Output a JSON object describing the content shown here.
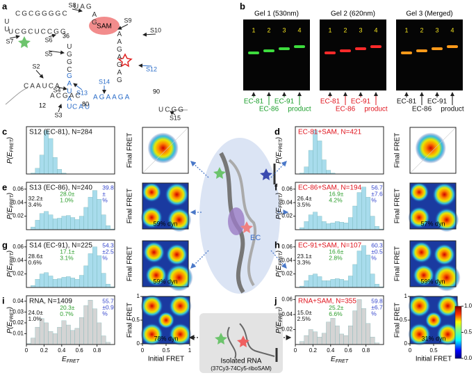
{
  "panel_a": {
    "label": "a",
    "sam": "SAM",
    "segments": [
      "CGCGGGGC",
      "UCGCUCCGG",
      "UU",
      "UAG",
      "AG",
      "UGGC",
      "GAUAU",
      "AAGAGAG",
      "CAAUCA",
      "ACGAC",
      "CAU",
      "AGAAGA",
      "UCGG"
    ],
    "sites": [
      "S2",
      "S3",
      "S4",
      "S5",
      "S6",
      "S7",
      "S8",
      "S9",
      "S10",
      "S12",
      "S13",
      "S14",
      "S15"
    ],
    "numbers": [
      "36",
      "12",
      "80",
      "90"
    ]
  },
  "panel_b": {
    "label": "b",
    "gels": [
      {
        "title": "Gel 1 (530nm)",
        "lanes": [
          "1",
          "2",
          "3",
          "4"
        ],
        "products": [
          "EC-81",
          "EC-86",
          "EC-91",
          "product"
        ],
        "product_color": "#1a9e2a",
        "band_color": "#3ddc3d"
      },
      {
        "title": "Gel 2 (620nm)",
        "lanes": [
          "1",
          "2",
          "3",
          "4"
        ],
        "products": [
          "EC-81",
          "EC-86",
          "EC-91",
          "product"
        ],
        "product_color": "#e0141e",
        "band_color": "#ff2a2a"
      },
      {
        "title": "Gel 3 (Merged)",
        "lanes": [
          "1",
          "2",
          "3",
          "4"
        ],
        "products": [
          "EC-81",
          "EC-86",
          "EC-91",
          "product"
        ],
        "product_color": "#111111",
        "band_color": "#ff9a1a"
      }
    ]
  },
  "center": {
    "ec": "EC",
    "rna_title": "Isolated RNA",
    "rna_sub": "(37Cy3-74Cy5-riboSAM)"
  },
  "colorbar": {
    "lim": [
      0,
      1
    ],
    "ticks": [
      {
        "value": 1,
        "label": "1.0"
      },
      {
        "value": 0.5,
        "label": "0.5"
      },
      {
        "value": 0,
        "label": "0.0"
      }
    ]
  },
  "chart_data": [
    {
      "type": "histogram",
      "panel": "c",
      "title": "S12 (EC-81), N=284",
      "title_color": "#111111",
      "bar_color": "#a8dcec",
      "bins": [
        0,
        0.05,
        0.1,
        0.15,
        0.2,
        0.25,
        0.3,
        0.35,
        0.4,
        0.45,
        0.5,
        0.55,
        0.6,
        0.65,
        0.7,
        0.75,
        0.8,
        0.85,
        0.9,
        0.95,
        1
      ],
      "values": [
        0,
        0.2,
        1.2,
        4,
        9.2,
        7.5,
        3.5,
        1,
        0.2,
        0,
        0,
        0,
        0,
        0,
        0,
        0,
        0,
        0,
        0,
        0
      ],
      "xlim": [
        0,
        1
      ],
      "ylim": [
        0,
        10
      ],
      "y_label": {
        "main": "P(E",
        "sub": "FRET",
        "end": ")"
      },
      "annotations": [],
      "heatmap": {
        "y_label": "Final FRET"
      }
    },
    {
      "type": "histogram",
      "panel": "d",
      "title": "EC-81+SAM, N=421",
      "title_color": "#e0141e",
      "bar_color": "#a8dcec",
      "bins": [
        0,
        0.05,
        0.1,
        0.15,
        0.2,
        0.25,
        0.3,
        0.35,
        0.4,
        0.45,
        0.5,
        0.55,
        0.6,
        0.65,
        0.7,
        0.75,
        0.8,
        0.85,
        0.9,
        0.95,
        1
      ],
      "values": [
        0,
        0.2,
        1.5,
        5,
        9.3,
        7,
        3,
        0.8,
        0.2,
        0,
        0,
        0,
        0,
        0,
        0,
        0,
        0,
        0,
        0,
        0
      ],
      "xlim": [
        0,
        1
      ],
      "ylim": [
        0,
        10
      ],
      "y_label": {
        "main": "P(E",
        "sub": "FRET",
        "end": ")"
      },
      "annotations": [],
      "heatmap": {
        "y_label": "Final FRET"
      }
    },
    {
      "type": "histogram",
      "panel": "e",
      "title": "S13 (EC-86), N=240",
      "title_color": "#111111",
      "bar_color": "#a8dcec",
      "bins": [
        0,
        0.05,
        0.1,
        0.15,
        0.2,
        0.25,
        0.3,
        0.35,
        0.4,
        0.45,
        0.5,
        0.55,
        0.6,
        0.65,
        0.7,
        0.75,
        0.8,
        0.85,
        0.9,
        0.95,
        1
      ],
      "values": [
        0,
        0.004,
        0.014,
        0.024,
        0.027,
        0.022,
        0.016,
        0.017,
        0.02,
        0.021,
        0.018,
        0.015,
        0.02,
        0.033,
        0.048,
        0.058,
        0.045,
        0.022,
        0.006,
        0.001
      ],
      "xlim": [
        0,
        1
      ],
      "ylim": [
        0,
        0.07
      ],
      "yticks": [
        0.02,
        0.04,
        0.06
      ],
      "y_label": {
        "main": "P(E",
        "sub": "FRET",
        "end": ")"
      },
      "annotations": [
        {
          "lines": [
            "32.2±",
            "3.4%"
          ],
          "color": "#111111"
        },
        {
          "lines": [
            "28.0±",
            "1.0%"
          ],
          "color": "#2a9d2a"
        },
        {
          "lines": [
            "39.8",
            "±",
            "%"
          ],
          "color": "#3344cc"
        }
      ],
      "heatmap": {
        "y_label": "Final FRET",
        "dyn": "59% dyn"
      }
    },
    {
      "type": "histogram",
      "panel": "f",
      "title": "EC-86+SAM, N=194",
      "title_color": "#e0141e",
      "bar_color": "#a8dcec",
      "bins": [
        0,
        0.05,
        0.1,
        0.15,
        0.2,
        0.25,
        0.3,
        0.35,
        0.4,
        0.45,
        0.5,
        0.55,
        0.6,
        0.65,
        0.7,
        0.75,
        0.8,
        0.85,
        0.9,
        0.95,
        1
      ],
      "values": [
        0,
        0.003,
        0.012,
        0.022,
        0.026,
        0.02,
        0.012,
        0.009,
        0.01,
        0.012,
        0.011,
        0.01,
        0.018,
        0.035,
        0.055,
        0.063,
        0.048,
        0.02,
        0.005,
        0.001
      ],
      "xlim": [
        0,
        1
      ],
      "ylim": [
        0,
        0.07
      ],
      "yticks": [
        0.02,
        0.04,
        0.06
      ],
      "y_label": {
        "main": "P(E",
        "sub": "FRET",
        "end": ")"
      },
      "annotations": [
        {
          "lines": [
            "26.4±",
            "3.5%"
          ],
          "color": "#111111"
        },
        {
          "lines": [
            "16.9±",
            "4.2%"
          ],
          "color": "#2a9d2a"
        },
        {
          "lines": [
            "56.7",
            "±7.6",
            "%"
          ],
          "color": "#3344cc"
        }
      ],
      "heatmap": {
        "y_label": "Final FRET",
        "dyn": "57% dyn"
      }
    },
    {
      "type": "histogram",
      "panel": "g",
      "title": "S14 (EC-91), N=225",
      "title_color": "#111111",
      "bar_color": "#a8dcec",
      "bins": [
        0,
        0.05,
        0.1,
        0.15,
        0.2,
        0.25,
        0.3,
        0.35,
        0.4,
        0.45,
        0.5,
        0.55,
        0.6,
        0.65,
        0.7,
        0.75,
        0.8,
        0.85,
        0.9,
        0.95,
        1
      ],
      "values": [
        0,
        0.003,
        0.012,
        0.02,
        0.022,
        0.017,
        0.012,
        0.013,
        0.015,
        0.016,
        0.014,
        0.012,
        0.018,
        0.032,
        0.05,
        0.06,
        0.047,
        0.021,
        0.005,
        0.001
      ],
      "xlim": [
        0,
        1
      ],
      "ylim": [
        0,
        0.07
      ],
      "yticks": [
        0.02,
        0.04,
        0.06
      ],
      "y_label": {
        "main": "P(E",
        "sub": "FRET",
        "end": ")"
      },
      "annotations": [
        {
          "lines": [
            "28.6±",
            "0.6%"
          ],
          "color": "#111111"
        },
        {
          "lines": [
            "17.1±",
            "3.1%"
          ],
          "color": "#2a9d2a"
        },
        {
          "lines": [
            "54.3",
            "±2.5",
            "%"
          ],
          "color": "#3344cc"
        }
      ],
      "heatmap": {
        "y_label": "Final FRET",
        "dyn": "59% dyn"
      }
    },
    {
      "type": "histogram",
      "panel": "h",
      "title": "EC-91+SAM, N=107",
      "title_color": "#e0141e",
      "bar_color": "#a8dcec",
      "bins": [
        0,
        0.05,
        0.1,
        0.15,
        0.2,
        0.25,
        0.3,
        0.35,
        0.4,
        0.45,
        0.5,
        0.55,
        0.6,
        0.65,
        0.7,
        0.75,
        0.8,
        0.85,
        0.9,
        0.95,
        1
      ],
      "values": [
        0,
        0.002,
        0.01,
        0.018,
        0.02,
        0.016,
        0.01,
        0.01,
        0.012,
        0.013,
        0.012,
        0.01,
        0.017,
        0.034,
        0.054,
        0.062,
        0.048,
        0.02,
        0.005,
        0.001
      ],
      "xlim": [
        0,
        1
      ],
      "ylim": [
        0,
        0.07
      ],
      "yticks": [
        0.02,
        0.04,
        0.06
      ],
      "y_label": {
        "main": "P(E",
        "sub": "FRET",
        "end": ")"
      },
      "annotations": [
        {
          "lines": [
            "23.1±",
            "3.3%"
          ],
          "color": "#111111"
        },
        {
          "lines": [
            "16.6±",
            "2.8%"
          ],
          "color": "#2a9d2a"
        },
        {
          "lines": [
            "60.3",
            "±0.5",
            "%"
          ],
          "color": "#3344cc"
        }
      ],
      "heatmap": {
        "y_label": "Final FRET",
        "dyn": "59% dyn"
      }
    },
    {
      "type": "histogram",
      "panel": "i",
      "title": "RNA, N=1409",
      "title_color": "#111111",
      "bar_color": "#d4d4d4",
      "bins": [
        0,
        0.05,
        0.1,
        0.15,
        0.2,
        0.25,
        0.3,
        0.35,
        0.4,
        0.45,
        0.5,
        0.55,
        0.6,
        0.65,
        0.7,
        0.75,
        0.8,
        0.85,
        0.9,
        0.95,
        1
      ],
      "values": [
        0.001,
        0.006,
        0.016,
        0.024,
        0.02,
        0.012,
        0.01,
        0.016,
        0.022,
        0.018,
        0.013,
        0.015,
        0.025,
        0.036,
        0.041,
        0.033,
        0.02,
        0.008,
        0.002,
        0
      ],
      "xlim": [
        0,
        1
      ],
      "ylim": [
        0,
        0.045
      ],
      "yticks": [
        0.01,
        0.02,
        0.03,
        0.04
      ],
      "xticks": [
        0,
        0.2,
        0.4,
        0.6,
        0.8
      ],
      "y_label": {
        "main": "P(E",
        "sub": "FRET",
        "end": ")"
      },
      "x_label": {
        "main": "E",
        "sub": "FRET"
      },
      "annotations": [
        {
          "lines": [
            "24.0±",
            "1.0%"
          ],
          "color": "#111111"
        },
        {
          "lines": [
            "20.3±",
            "0.7%"
          ],
          "color": "#2a9d2a"
        },
        {
          "lines": [
            "55.7",
            "±0.9",
            "%"
          ],
          "color": "#3344cc"
        }
      ],
      "heatmap": {
        "y_label": "Final FRET",
        "x_label": "Initial FRET",
        "dyn": "78% dyn",
        "xticks": [
          0,
          0.5,
          1
        ],
        "yticks": [
          0,
          0.5,
          1
        ]
      }
    },
    {
      "type": "histogram",
      "panel": "j",
      "title": "RNA+SAM, N=355",
      "title_color": "#e0141e",
      "bar_color": "#d4d4d4",
      "bins": [
        0,
        0.05,
        0.1,
        0.15,
        0.2,
        0.25,
        0.3,
        0.35,
        0.4,
        0.45,
        0.5,
        0.55,
        0.6,
        0.65,
        0.7,
        0.75,
        0.8,
        0.85,
        0.9,
        0.95,
        1
      ],
      "values": [
        0,
        0.004,
        0.012,
        0.02,
        0.017,
        0.01,
        0.015,
        0.03,
        0.035,
        0.025,
        0.014,
        0.012,
        0.025,
        0.045,
        0.06,
        0.048,
        0.028,
        0.01,
        0.002,
        0
      ],
      "xlim": [
        0,
        1
      ],
      "ylim": [
        0,
        0.065
      ],
      "yticks": [
        0.02,
        0.04,
        0.06
      ],
      "xticks": [
        0,
        0.2,
        0.4,
        0.6,
        0.8
      ],
      "y_label": {
        "main": "P(E",
        "sub": "FRET",
        "end": ")"
      },
      "x_label": {
        "main": "E",
        "sub": "FRET"
      },
      "annotations": [
        {
          "lines": [
            "15.0±",
            "2.5%"
          ],
          "color": "#111111"
        },
        {
          "lines": [
            "25.2±",
            "6.6%"
          ],
          "color": "#2a9d2a"
        },
        {
          "lines": [
            "59.8",
            "±6.7",
            "%"
          ],
          "color": "#3344cc"
        }
      ],
      "heatmap": {
        "y_label": "Final FRET",
        "x_label": "Initial FRET",
        "dyn": "31% dyn",
        "xticks": [
          0,
          0.5,
          1
        ],
        "yticks": [
          0,
          0.5,
          1
        ]
      }
    }
  ]
}
